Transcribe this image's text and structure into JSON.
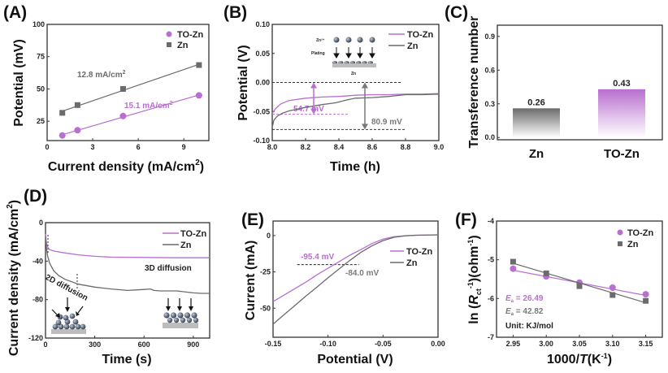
{
  "colors": {
    "to_zn": "#b86fcf",
    "zn": "#6b6b6b",
    "dashed": "#333333",
    "sphere": "#6d7a8c",
    "substrate": "#bdbdbd"
  },
  "chart_data": [
    {
      "panel": "(A)",
      "type": "line",
      "title": "",
      "xlabel": "Current density (mA/cm 2)",
      "ylabel": "Potential (mV)",
      "xlim": [
        0,
        10.65
      ],
      "ylim": [
        10,
        100
      ],
      "xticks": [
        0,
        3,
        6,
        9
      ],
      "yticks": [
        25,
        50,
        75,
        100
      ],
      "legend": "top-right",
      "series": [
        {
          "name": "TO-Zn",
          "marker": "circle",
          "x": [
            1,
            2,
            5,
            10
          ],
          "y": [
            14,
            18,
            29,
            45
          ],
          "fit_label": "15.1 mA/cm 2"
        },
        {
          "name": "Zn",
          "marker": "square",
          "x": [
            1,
            2,
            5,
            10
          ],
          "y": [
            31.5,
            37.5,
            50,
            68.5
          ],
          "fit_label": "12.8 mA/cm 2"
        }
      ]
    },
    {
      "panel": "(B)",
      "type": "line",
      "title": "",
      "xlabel": "Time (h)",
      "ylabel": "Potential (V)",
      "xlim": [
        8.0,
        9.0
      ],
      "ylim": [
        -0.1,
        0.1
      ],
      "xticks": [
        "8.0",
        "8.2",
        "8.4",
        "8.6",
        "8.8",
        "9.0"
      ],
      "yticks": [
        "-0.10",
        "-0.05",
        "0.00",
        "0.05",
        "0.10"
      ],
      "legend": "top-right",
      "series": [
        {
          "name": "TO-Zn",
          "x": [
            8.0,
            8.02,
            8.05,
            8.1,
            8.2,
            8.3,
            8.4,
            8.5,
            8.6,
            8.7,
            8.8,
            8.9,
            9.0
          ],
          "y": [
            -0.053,
            -0.045,
            -0.037,
            -0.031,
            -0.027,
            -0.025,
            -0.024,
            -0.022,
            -0.021,
            -0.021,
            -0.02,
            -0.02,
            -0.019
          ]
        },
        {
          "name": "Zn",
          "x": [
            8.0,
            8.01,
            8.03,
            8.06,
            8.1,
            8.2,
            8.3,
            8.38,
            8.45,
            8.5,
            8.6,
            8.7,
            8.8,
            8.9,
            9.0
          ],
          "y": [
            -0.077,
            -0.065,
            -0.058,
            -0.053,
            -0.049,
            -0.043,
            -0.038,
            -0.035,
            -0.03,
            -0.027,
            -0.026,
            -0.024,
            -0.021,
            -0.021,
            -0.02
          ]
        }
      ],
      "annotations": [
        {
          "text": "54.7 mV",
          "series": "TO-Zn"
        },
        {
          "text": "80.9 mV",
          "series": "Zn"
        }
      ],
      "inset": {
        "ion_label": "Zn²⁺",
        "process_label": "Plating",
        "substrate_label": "Zn"
      }
    },
    {
      "panel": "(C)",
      "type": "bar",
      "title": "",
      "xlabel": "",
      "ylabel": "Transference number",
      "categories": [
        "Zn",
        "TO-Zn"
      ],
      "values": [
        0.26,
        0.43
      ],
      "value_labels": [
        "0.26",
        "0.43"
      ],
      "ylim": [
        -0.02,
        1.0
      ],
      "yticks": [
        "0.0",
        "0.3",
        "0.6",
        "0.9"
      ]
    },
    {
      "panel": "(D)",
      "type": "line",
      "title": "",
      "xlabel": "Time (s)",
      "ylabel": "Current density (mA/cm 2)",
      "xlim": [
        0,
        1000
      ],
      "ylim": [
        -120,
        0
      ],
      "xticks": [
        0,
        300,
        600,
        900
      ],
      "yticks": [
        0,
        -40,
        -80,
        -120
      ],
      "legend": "top-right",
      "series": [
        {
          "name": "TO-Zn",
          "x": [
            0,
            5,
            12,
            25,
            50,
            100,
            200,
            300,
            400,
            600,
            800,
            1000
          ],
          "y": [
            -12,
            -20,
            -25,
            -28,
            -29.5,
            -31,
            -33.5,
            -35,
            -35.8,
            -36.2,
            -36.5,
            -36.5
          ]
        },
        {
          "name": "Zn",
          "x": [
            0,
            5,
            12,
            25,
            50,
            80,
            120,
            200,
            300,
            400,
            500,
            550,
            600,
            640,
            660,
            700,
            800,
            900,
            950,
            1000
          ],
          "y": [
            -14,
            -25,
            -34,
            -42,
            -50,
            -55,
            -59,
            -64,
            -67,
            -69,
            -70.5,
            -70,
            -69.5,
            -69,
            -70.5,
            -71,
            -71,
            -73,
            -73.5,
            -73.5
          ]
        }
      ],
      "annotations": [
        {
          "text": "2D diffusion"
        },
        {
          "text": "3D diffusion"
        }
      ]
    },
    {
      "panel": "(E)",
      "type": "line",
      "title": "",
      "xlabel": "Potential (V)",
      "ylabel": "Current (mA)",
      "xlim": [
        -0.15,
        0.0
      ],
      "ylim": [
        -70,
        10
      ],
      "xticks": [
        "-0.15",
        "-0.10",
        "-0.05",
        "0.00"
      ],
      "yticks": [
        0,
        -25,
        -50
      ],
      "legend": "right",
      "series": [
        {
          "name": "TO-Zn",
          "x": [
            -0.15,
            -0.14,
            -0.13,
            -0.12,
            -0.11,
            -0.1,
            -0.09,
            -0.08,
            -0.07,
            -0.06,
            -0.05,
            -0.04,
            -0.03,
            -0.02,
            0.0
          ],
          "y": [
            -45.5,
            -41,
            -36.5,
            -32,
            -27,
            -22.5,
            -18,
            -13.5,
            -9.5,
            -5.5,
            -2.5,
            -0.8,
            -0.1,
            0.2,
            0.5
          ]
        },
        {
          "name": "Zn",
          "x": [
            -0.15,
            -0.14,
            -0.13,
            -0.12,
            -0.11,
            -0.1,
            -0.09,
            -0.08,
            -0.07,
            -0.06,
            -0.05,
            -0.04,
            -0.03,
            -0.02,
            0.0
          ],
          "y": [
            -61,
            -54.5,
            -48,
            -41.5,
            -35.5,
            -29,
            -23,
            -17,
            -11.5,
            -7,
            -3.5,
            -1.2,
            -0.2,
            0.2,
            0.5
          ]
        }
      ],
      "reference_current": -20,
      "annotations": [
        {
          "text": "-95.4 mV",
          "series": "TO-Zn"
        },
        {
          "text": "-84.0 mV",
          "series": "Zn"
        }
      ]
    },
    {
      "panel": "(F)",
      "type": "scatter",
      "title": "",
      "xlabel": "1000/T (K-1)",
      "ylabel": "ln (Rct-1)(ohm-1)",
      "xlim": [
        2.925,
        3.175
      ],
      "ylim": [
        -7,
        -4
      ],
      "xticks": [
        "2.95",
        "3.00",
        "3.05",
        "3.10",
        "3.15"
      ],
      "yticks": [
        "-4",
        "-5",
        "-6",
        "-7"
      ],
      "legend": "top-right",
      "series": [
        {
          "name": "TO-Zn",
          "marker": "circle",
          "x": [
            2.95,
            3.0,
            3.05,
            3.1,
            3.15
          ],
          "y": [
            -5.23,
            -5.43,
            -5.59,
            -5.72,
            -5.89
          ],
          "fit": [
            -5.27,
            -5.92
          ]
        },
        {
          "name": "Zn",
          "marker": "square",
          "x": [
            2.95,
            3.0,
            3.05,
            3.1,
            3.15
          ],
          "y": [
            -5.05,
            -5.35,
            -5.68,
            -5.91,
            -6.06
          ],
          "fit": [
            -5.09,
            -6.11
          ]
        }
      ],
      "annotations": [
        {
          "text": "Ea = 26.49",
          "series": "TO-Zn"
        },
        {
          "text": "Ea = 42.82",
          "series": "Zn"
        },
        {
          "text": "Unit: KJ/mol"
        }
      ]
    }
  ],
  "labels": {
    "A": {
      "panel": "(A)",
      "ylabel": "Potential (mV)",
      "xlabel_main": "Current density (mA/cm",
      "xlabel_sup": "2",
      "xlabel_end": ")",
      "legend": [
        "TO-Zn",
        "Zn"
      ],
      "fit_zn": "12.8 mA/cm",
      "fit_to": "15.1 mA/cm",
      "fit_sup": "2"
    },
    "B": {
      "panel": "(B)",
      "ylabel": "Potential (V)",
      "xlabel": "Time (h)",
      "legend": [
        "TO-Zn",
        "Zn"
      ],
      "ann_to": "54.7 mV",
      "ann_zn": "80.9 mV",
      "inset_ion": "Zn²⁺",
      "inset_plating": "Plating",
      "inset_sub": "Zn"
    },
    "C": {
      "panel": "(C)",
      "ylabel": "Transference number"
    },
    "D": {
      "panel": "(D)",
      "ylabel": "Current density (mA/cm",
      "ylabel_sup": "2",
      "ylabel_end": ")",
      "xlabel": "Time (s)",
      "legend": [
        "TO-Zn",
        "Zn"
      ],
      "ann_2d": "2D diffusion",
      "ann_3d": "3D diffusion"
    },
    "E": {
      "panel": "(E)",
      "ylabel": "Current (mA)",
      "xlabel": "Potential (V)",
      "legend": [
        "TO-Zn",
        "Zn"
      ],
      "ann_to": "-95.4 mV",
      "ann_zn": "-84.0 mV"
    },
    "F": {
      "panel": "(F)",
      "ylabel_pre": "ln (",
      "ylabel_R": "R",
      "ylabel_sub": "ct",
      "ylabel_sup": "-1",
      "ylabel_post": ")(ohm",
      "ylabel_sup2": "-1",
      "ylabel_end": ")",
      "xlabel_pre": "1000/",
      "xlabel_T": "T",
      "xlabel_mid": "(K",
      "xlabel_sup": "-1",
      "xlabel_end": ")",
      "legend": [
        "TO-Zn",
        "Zn"
      ],
      "ea_to": " = 26.49",
      "ea_zn": " = 42.82",
      "ea_sym": "E",
      "ea_sub": "a",
      "unit": "Unit: KJ/mol"
    }
  }
}
